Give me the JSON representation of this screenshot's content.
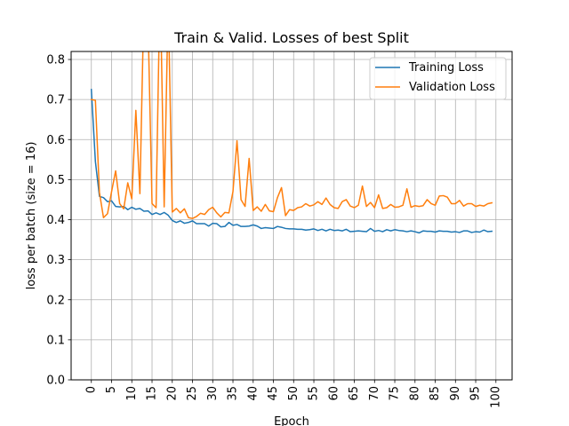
{
  "chart_data": {
    "type": "line",
    "title": "Train & Valid. Losses of best Split",
    "xlabel": "Epoch",
    "ylabel": "loss per batch (size = 16)",
    "xlim": [
      -5,
      104
    ],
    "ylim": [
      0.0,
      0.82
    ],
    "x_ticks": [
      0,
      5,
      10,
      15,
      20,
      25,
      30,
      35,
      40,
      45,
      50,
      55,
      60,
      65,
      70,
      75,
      80,
      85,
      90,
      95,
      100
    ],
    "y_ticks": [
      0.0,
      0.1,
      0.2,
      0.3,
      0.4,
      0.5,
      0.6,
      0.7,
      0.8
    ],
    "grid": true,
    "legend_position": "top-right",
    "series": [
      {
        "name": "Training Loss",
        "color": "#1f77b4",
        "x": [
          0,
          1,
          2,
          3,
          4,
          5,
          6,
          7,
          8,
          9,
          10,
          11,
          12,
          13,
          14,
          15,
          16,
          17,
          18,
          19,
          20,
          21,
          22,
          23,
          24,
          25,
          26,
          27,
          28,
          29,
          30,
          31,
          32,
          33,
          34,
          35,
          36,
          37,
          38,
          39,
          40,
          41,
          42,
          43,
          44,
          45,
          46,
          47,
          48,
          49,
          50,
          51,
          52,
          53,
          54,
          55,
          56,
          57,
          58,
          59,
          60,
          61,
          62,
          63,
          64,
          65,
          66,
          67,
          68,
          69,
          70,
          71,
          72,
          73,
          74,
          75,
          76,
          77,
          78,
          79,
          80,
          81,
          82,
          83,
          84,
          85,
          86,
          87,
          88,
          89,
          90,
          91,
          92,
          93,
          94,
          95,
          96,
          97,
          98,
          99
        ],
        "values": [
          0.725,
          0.545,
          0.458,
          0.455,
          0.445,
          0.447,
          0.433,
          0.432,
          0.433,
          0.425,
          0.431,
          0.426,
          0.428,
          0.421,
          0.422,
          0.413,
          0.417,
          0.413,
          0.418,
          0.411,
          0.398,
          0.393,
          0.397,
          0.391,
          0.393,
          0.397,
          0.39,
          0.39,
          0.39,
          0.384,
          0.391,
          0.39,
          0.382,
          0.383,
          0.393,
          0.386,
          0.388,
          0.383,
          0.383,
          0.384,
          0.387,
          0.384,
          0.378,
          0.38,
          0.379,
          0.378,
          0.383,
          0.381,
          0.378,
          0.377,
          0.377,
          0.376,
          0.376,
          0.374,
          0.375,
          0.377,
          0.373,
          0.376,
          0.372,
          0.376,
          0.373,
          0.374,
          0.372,
          0.376,
          0.37,
          0.371,
          0.372,
          0.371,
          0.37,
          0.378,
          0.371,
          0.373,
          0.37,
          0.375,
          0.372,
          0.375,
          0.373,
          0.372,
          0.37,
          0.372,
          0.37,
          0.367,
          0.372,
          0.371,
          0.371,
          0.369,
          0.372,
          0.371,
          0.371,
          0.369,
          0.37,
          0.368,
          0.372,
          0.372,
          0.368,
          0.37,
          0.369,
          0.374,
          0.37,
          0.371
        ]
      },
      {
        "name": "Validation Loss",
        "color": "#ff7f0e",
        "x": [
          0,
          1,
          2,
          3,
          4,
          5,
          6,
          7,
          8,
          9,
          10,
          11,
          12,
          13,
          14,
          15,
          16,
          17,
          18,
          19,
          20,
          21,
          22,
          23,
          24,
          25,
          26,
          27,
          28,
          29,
          30,
          31,
          32,
          33,
          34,
          35,
          36,
          37,
          38,
          39,
          40,
          41,
          42,
          43,
          44,
          45,
          46,
          47,
          48,
          49,
          50,
          51,
          52,
          53,
          54,
          55,
          56,
          57,
          58,
          59,
          60,
          61,
          62,
          63,
          64,
          65,
          66,
          67,
          68,
          69,
          70,
          71,
          72,
          73,
          74,
          75,
          76,
          77,
          78,
          79,
          80,
          81,
          82,
          83,
          84,
          85,
          86,
          87,
          88,
          89,
          90,
          91,
          92,
          93,
          94,
          95,
          96,
          97,
          98,
          99
        ],
        "values": [
          0.7,
          0.698,
          0.468,
          0.405,
          0.415,
          0.47,
          0.522,
          0.44,
          0.427,
          0.492,
          0.452,
          0.673,
          0.465,
          0.95,
          0.9,
          0.44,
          0.43,
          1.0,
          0.432,
          0.95,
          0.419,
          0.428,
          0.417,
          0.427,
          0.405,
          0.403,
          0.408,
          0.416,
          0.413,
          0.425,
          0.431,
          0.417,
          0.407,
          0.418,
          0.417,
          0.47,
          0.597,
          0.45,
          0.433,
          0.553,
          0.423,
          0.432,
          0.421,
          0.438,
          0.422,
          0.42,
          0.455,
          0.48,
          0.41,
          0.425,
          0.423,
          0.43,
          0.432,
          0.44,
          0.434,
          0.437,
          0.445,
          0.438,
          0.454,
          0.438,
          0.43,
          0.428,
          0.445,
          0.45,
          0.434,
          0.43,
          0.436,
          0.484,
          0.433,
          0.443,
          0.43,
          0.462,
          0.428,
          0.43,
          0.438,
          0.431,
          0.432,
          0.436,
          0.477,
          0.431,
          0.435,
          0.433,
          0.435,
          0.45,
          0.44,
          0.436,
          0.459,
          0.46,
          0.456,
          0.44,
          0.44,
          0.448,
          0.434,
          0.44,
          0.44,
          0.433,
          0.436,
          0.434,
          0.44,
          0.442
        ]
      }
    ]
  }
}
